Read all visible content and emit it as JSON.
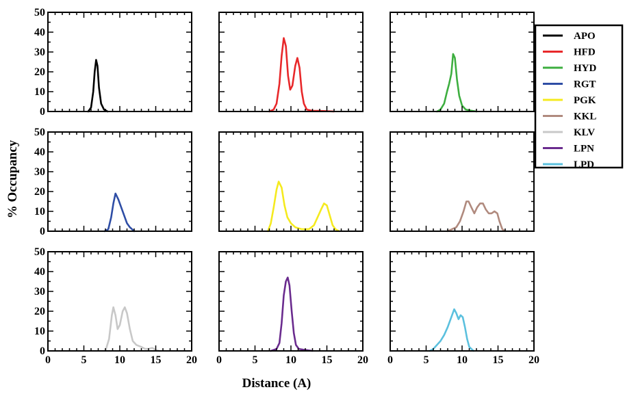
{
  "chart_data": {
    "type": "line",
    "xlabel": "Distance (A)",
    "ylabel": "% Occupancy",
    "xlim": [
      0,
      20
    ],
    "ylim": [
      0,
      50
    ],
    "x_ticks": [
      0,
      5,
      10,
      15,
      20
    ],
    "y_ticks": [
      0,
      10,
      20,
      30,
      40,
      50
    ],
    "grid": false,
    "legend": "right",
    "layout": "3x3 grid of panels, shared axes",
    "series": [
      {
        "name": "APO",
        "color": "#000000",
        "points": [
          [
            5.6,
            0
          ],
          [
            6.0,
            2
          ],
          [
            6.3,
            10
          ],
          [
            6.5,
            20
          ],
          [
            6.7,
            26
          ],
          [
            6.9,
            23
          ],
          [
            7.1,
            12
          ],
          [
            7.4,
            4
          ],
          [
            7.8,
            1
          ],
          [
            8.3,
            0
          ]
        ]
      },
      {
        "name": "HFD",
        "color": "#e8282a",
        "points": [
          [
            7.0,
            0
          ],
          [
            7.6,
            1
          ],
          [
            8.0,
            4
          ],
          [
            8.4,
            14
          ],
          [
            8.7,
            28
          ],
          [
            9.0,
            37
          ],
          [
            9.3,
            33
          ],
          [
            9.6,
            18
          ],
          [
            9.9,
            11
          ],
          [
            10.2,
            13
          ],
          [
            10.6,
            23
          ],
          [
            10.9,
            27
          ],
          [
            11.2,
            22
          ],
          [
            11.5,
            10
          ],
          [
            11.8,
            4
          ],
          [
            12.2,
            1
          ],
          [
            13,
            0.3
          ],
          [
            14,
            0.3
          ],
          [
            16,
            0
          ]
        ]
      },
      {
        "name": "HYD",
        "color": "#3dae3f",
        "points": [
          [
            6.5,
            0
          ],
          [
            7.0,
            1
          ],
          [
            7.5,
            4
          ],
          [
            7.9,
            10
          ],
          [
            8.2,
            14
          ],
          [
            8.5,
            19
          ],
          [
            8.75,
            29
          ],
          [
            9.0,
            27
          ],
          [
            9.3,
            16
          ],
          [
            9.6,
            8
          ],
          [
            10,
            3
          ],
          [
            10.5,
            1
          ],
          [
            11.2,
            0.5
          ],
          [
            12,
            0
          ]
        ]
      },
      {
        "name": "RGT",
        "color": "#2e4da5",
        "points": [
          [
            7.9,
            0
          ],
          [
            8.4,
            1
          ],
          [
            8.8,
            7
          ],
          [
            9.1,
            14
          ],
          [
            9.4,
            19
          ],
          [
            9.8,
            16
          ],
          [
            10.2,
            12
          ],
          [
            10.6,
            8
          ],
          [
            11.0,
            4
          ],
          [
            11.4,
            2
          ],
          [
            12.0,
            0
          ]
        ]
      },
      {
        "name": "PGK",
        "color": "#f5ea1e",
        "points": [
          [
            6.8,
            0
          ],
          [
            7.2,
            4
          ],
          [
            7.6,
            12
          ],
          [
            8.0,
            21
          ],
          [
            8.3,
            25
          ],
          [
            8.7,
            22
          ],
          [
            9.1,
            13
          ],
          [
            9.5,
            7
          ],
          [
            10,
            4
          ],
          [
            10.6,
            2
          ],
          [
            11.5,
            1
          ],
          [
            12.5,
            1
          ],
          [
            13.2,
            3
          ],
          [
            13.7,
            7
          ],
          [
            14.2,
            11
          ],
          [
            14.6,
            14
          ],
          [
            15.0,
            13
          ],
          [
            15.4,
            8
          ],
          [
            15.8,
            3
          ],
          [
            16.2,
            1
          ],
          [
            16.7,
            0
          ]
        ]
      },
      {
        "name": "KKL",
        "color": "#b08a7e",
        "points": [
          [
            8.0,
            0
          ],
          [
            8.6,
            1
          ],
          [
            9.2,
            2
          ],
          [
            9.7,
            5
          ],
          [
            10.2,
            10
          ],
          [
            10.6,
            15
          ],
          [
            10.9,
            15
          ],
          [
            11.3,
            12
          ],
          [
            11.7,
            9
          ],
          [
            12.1,
            12
          ],
          [
            12.5,
            14
          ],
          [
            12.9,
            14
          ],
          [
            13.3,
            11
          ],
          [
            13.7,
            9
          ],
          [
            14.1,
            9
          ],
          [
            14.5,
            10
          ],
          [
            14.9,
            9
          ],
          [
            15.2,
            5
          ],
          [
            15.6,
            1
          ],
          [
            16.0,
            0
          ]
        ]
      },
      {
        "name": "KLV",
        "color": "#c8c8c8",
        "points": [
          [
            8.0,
            0
          ],
          [
            8.5,
            6
          ],
          [
            8.9,
            18
          ],
          [
            9.1,
            22
          ],
          [
            9.4,
            18
          ],
          [
            9.7,
            11
          ],
          [
            10.0,
            13
          ],
          [
            10.4,
            20
          ],
          [
            10.7,
            22
          ],
          [
            11.0,
            19
          ],
          [
            11.4,
            11
          ],
          [
            11.8,
            5
          ],
          [
            12.3,
            3
          ],
          [
            13,
            2
          ],
          [
            13.5,
            1
          ],
          [
            14.0,
            1
          ],
          [
            14.5,
            1.5
          ],
          [
            15,
            0.5
          ],
          [
            15.5,
            0
          ]
        ]
      },
      {
        "name": "LPN",
        "color": "#6a2b8e",
        "points": [
          [
            7.2,
            0
          ],
          [
            8.0,
            1
          ],
          [
            8.4,
            4
          ],
          [
            8.7,
            14
          ],
          [
            9.0,
            28
          ],
          [
            9.3,
            35
          ],
          [
            9.55,
            37
          ],
          [
            9.8,
            33
          ],
          [
            10.1,
            20
          ],
          [
            10.4,
            9
          ],
          [
            10.7,
            3
          ],
          [
            11.1,
            1
          ],
          [
            12,
            0.5
          ],
          [
            13,
            0
          ]
        ]
      },
      {
        "name": "LPD",
        "color": "#5bc0de",
        "points": [
          [
            5.5,
            0
          ],
          [
            6.0,
            1
          ],
          [
            6.5,
            3
          ],
          [
            7.0,
            5
          ],
          [
            7.5,
            8
          ],
          [
            8.0,
            12
          ],
          [
            8.5,
            17
          ],
          [
            8.9,
            21
          ],
          [
            9.2,
            19
          ],
          [
            9.5,
            16
          ],
          [
            9.8,
            18
          ],
          [
            10.1,
            17
          ],
          [
            10.4,
            12
          ],
          [
            10.7,
            6
          ],
          [
            11.0,
            2
          ],
          [
            11.3,
            1
          ],
          [
            11.6,
            0
          ]
        ]
      }
    ]
  }
}
